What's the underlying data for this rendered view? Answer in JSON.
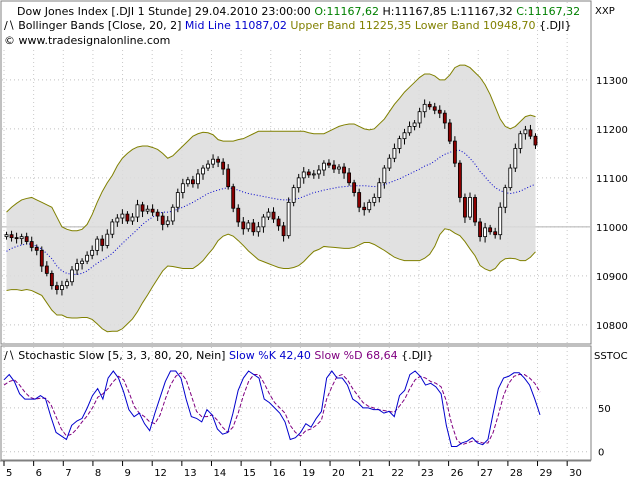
{
  "header": {
    "line1": {
      "prefix": "Dow Jones Index [.DJI  1 Stunde] 29.04.2010 23:00:00",
      "open_label": "O:11167,62",
      "high_low": "H:11167,85 L:11167,32",
      "close_label": "C:11167,32"
    },
    "line2": {
      "prefix": "Bollinger Bands [Close, 20, 2]",
      "mid_label": "Mid Line 11087,02",
      "upper_label": "Upper Band 11225,35",
      "lower_label": "Lower Band 10948,70",
      "suffix": "{.DJI}"
    },
    "line3": "© www.tradesignalonline.com"
  },
  "stoch_header": {
    "prefix": "Stochastic Slow [5, 3, 3, 80, 20, Nein]",
    "k_label": "Slow %K 42,40",
    "d_label": "Slow %D 68,64",
    "suffix": "{.DJI}"
  },
  "axis_tags": {
    "main": "XXP",
    "stoch": "SSTOC"
  },
  "colors": {
    "up_candle": "#ffffff",
    "down_candle": "#8b0000",
    "band": "#808000",
    "band_fill": "#dcdcdc",
    "mid_line": "#0000cd",
    "slow_k": "#0000cd",
    "slow_d": "#800080",
    "open_text": "#008000",
    "close_text": "#008000"
  },
  "chart_data": [
    {
      "type": "candlestick",
      "title": "Dow Jones Index [.DJI  1 Stunde]",
      "ylim": [
        10765,
        11365
      ],
      "yticks": [
        10800,
        10900,
        11000,
        11100,
        11200,
        11300
      ],
      "reference_line": 11000,
      "x_labels": [
        "5",
        "6",
        "7",
        "8",
        "9",
        "12",
        "13",
        "14",
        "15",
        "16",
        "19",
        "20",
        "21",
        "22",
        "23",
        "26",
        "27",
        "28",
        "29",
        "30"
      ],
      "closes": [
        10984,
        10978,
        10976,
        10980,
        10970,
        10958,
        10952,
        10920,
        10905,
        10880,
        10872,
        10880,
        10888,
        10912,
        10925,
        10930,
        10942,
        10952,
        10975,
        10962,
        10985,
        11010,
        11018,
        11026,
        11012,
        11020,
        11045,
        11032,
        11036,
        11030,
        11022,
        11005,
        11012,
        11040,
        11070,
        11088,
        11096,
        11088,
        11108,
        11120,
        11128,
        11138,
        11132,
        11118,
        11082,
        11038,
        11010,
        10996,
        11008,
        10990,
        11000,
        11020,
        11030,
        11016,
        11002,
        10982,
        11050,
        11080,
        11100,
        11112,
        11106,
        11108,
        11116,
        11130,
        11126,
        11118,
        11122,
        11110,
        11090,
        11070,
        11040,
        11035,
        11050,
        11060,
        11090,
        11120,
        11140,
        11160,
        11180,
        11192,
        11205,
        11212,
        11235,
        11250,
        11245,
        11238,
        11232,
        11212,
        11175,
        11130,
        11060,
        11020,
        11060,
        11010,
        10980,
        10998,
        10990,
        10984,
        11040,
        11080,
        11120,
        11160,
        11190,
        11198,
        11185,
        11167
      ],
      "band_upper": [
        11030,
        11040,
        11048,
        11055,
        11058,
        11060,
        11055,
        11050,
        11045,
        11040,
        11020,
        11000,
        10995,
        10992,
        10992,
        10995,
        11005,
        11025,
        11050,
        11072,
        11090,
        11105,
        11125,
        11140,
        11150,
        11158,
        11163,
        11165,
        11165,
        11162,
        11158,
        11150,
        11140,
        11145,
        11155,
        11165,
        11175,
        11185,
        11190,
        11193,
        11192,
        11188,
        11178,
        11175,
        11175,
        11175,
        11178,
        11180,
        11185,
        11190,
        11195,
        11195,
        11195,
        11195,
        11195,
        11195,
        11195,
        11195,
        11195,
        11195,
        11192,
        11190,
        11190,
        11190,
        11195,
        11200,
        11205,
        11208,
        11210,
        11210,
        11205,
        11200,
        11198,
        11200,
        11210,
        11220,
        11235,
        11250,
        11262,
        11275,
        11285,
        11295,
        11305,
        11312,
        11312,
        11308,
        11300,
        11300,
        11310,
        11325,
        11330,
        11330,
        11325,
        11315,
        11305,
        11290,
        11270,
        11245,
        11220,
        11205,
        11200,
        11205,
        11215,
        11225,
        11228,
        11225
      ],
      "band_mid": [
        10950,
        10956,
        10960,
        10963,
        10965,
        10965,
        10960,
        10955,
        10945,
        10935,
        10920,
        10910,
        10905,
        10903,
        10903,
        10905,
        10910,
        10918,
        10926,
        10932,
        10938,
        10946,
        10956,
        10966,
        10976,
        10985,
        10995,
        11005,
        11013,
        11020,
        11026,
        11030,
        11030,
        11032,
        11036,
        11040,
        11045,
        11050,
        11056,
        11062,
        11068,
        11072,
        11075,
        11078,
        11080,
        11078,
        11075,
        11071,
        11068,
        11066,
        11064,
        11062,
        11060,
        11058,
        11056,
        11055,
        11055,
        11056,
        11058,
        11062,
        11066,
        11070,
        11072,
        11075,
        11077,
        11079,
        11081,
        11082,
        11083,
        11084,
        11084,
        11084,
        11083,
        11082,
        11084,
        11086,
        11090,
        11094,
        11098,
        11103,
        11108,
        11113,
        11118,
        11124,
        11128,
        11134,
        11142,
        11148,
        11152,
        11156,
        11156,
        11150,
        11140,
        11128,
        11113,
        11102,
        11090,
        11080,
        11074,
        11070,
        11068,
        11070,
        11073,
        11078,
        11083,
        11087
      ],
      "band_lower": [
        10870,
        10872,
        10872,
        10870,
        10872,
        10870,
        10865,
        10860,
        10845,
        10830,
        10820,
        10820,
        10815,
        10814,
        10814,
        10815,
        10815,
        10811,
        10802,
        10792,
        10786,
        10787,
        10787,
        10792,
        10802,
        10812,
        10827,
        10845,
        10861,
        10878,
        10894,
        10910,
        10920,
        10919,
        10917,
        10915,
        10915,
        10915,
        10922,
        10931,
        10944,
        10956,
        10972,
        10981,
        10985,
        10981,
        10972,
        10962,
        10951,
        10942,
        10933,
        10929,
        10925,
        10921,
        10917,
        10915,
        10915,
        10917,
        10921,
        10929,
        10940,
        10950,
        10954,
        10960,
        10959,
        10958,
        10957,
        10956,
        10956,
        10958,
        10963,
        10968,
        10968,
        10964,
        10958,
        10952,
        10945,
        10938,
        10934,
        10931,
        10931,
        10931,
        10931,
        10936,
        10944,
        10960,
        10984,
        10996,
        10994,
        10987,
        10982,
        10970,
        10955,
        10941,
        10921,
        10914,
        10910,
        10915,
        10928,
        10935,
        10936,
        10935,
        10931,
        10931,
        10938,
        10949
      ]
    },
    {
      "type": "line",
      "title": "Stochastic Slow [5, 3, 3, 80, 20, Nein]",
      "ylim": [
        -6,
        100
      ],
      "yticks": [
        0,
        50
      ],
      "series": [
        {
          "name": "Slow %K",
          "values": [
            82,
            88,
            80,
            66,
            60,
            60,
            60,
            64,
            60,
            40,
            22,
            18,
            14,
            30,
            35,
            38,
            50,
            64,
            72,
            60,
            84,
            92,
            84,
            68,
            48,
            40,
            44,
            32,
            24,
            44,
            62,
            80,
            92,
            92,
            84,
            60,
            40,
            38,
            34,
            48,
            42,
            26,
            20,
            22,
            44,
            70,
            84,
            92,
            88,
            84,
            60,
            56,
            50,
            44,
            34,
            14,
            16,
            22,
            32,
            28,
            38,
            46,
            84,
            92,
            84,
            84,
            76,
            60,
            56,
            50,
            50,
            48,
            48,
            44,
            46,
            40,
            64,
            70,
            88,
            92,
            86,
            76,
            78,
            74,
            66,
            30,
            6,
            6,
            10,
            12,
            16,
            10,
            8,
            14,
            44,
            72,
            84,
            86,
            90,
            90,
            84,
            76,
            60,
            42
          ]
        },
        {
          "name": "Slow %D",
          "values": [
            76,
            80,
            82,
            76,
            68,
            62,
            60,
            61,
            61,
            54,
            40,
            26,
            18,
            20,
            26,
            34,
            41,
            50,
            62,
            66,
            72,
            80,
            86,
            82,
            68,
            52,
            44,
            40,
            34,
            32,
            42,
            60,
            76,
            86,
            90,
            82,
            64,
            46,
            40,
            40,
            42,
            36,
            28,
            22,
            28,
            44,
            64,
            80,
            88,
            88,
            78,
            66,
            56,
            50,
            44,
            30,
            22,
            18,
            24,
            26,
            30,
            36,
            60,
            74,
            86,
            88,
            82,
            72,
            64,
            56,
            52,
            50,
            48,
            47,
            46,
            45,
            52,
            60,
            72,
            82,
            86,
            84,
            80,
            78,
            74,
            58,
            32,
            14,
            8,
            10,
            12,
            12,
            10,
            10,
            22,
            42,
            64,
            78,
            86,
            88,
            88,
            84,
            78,
            68
          ]
        }
      ]
    }
  ]
}
